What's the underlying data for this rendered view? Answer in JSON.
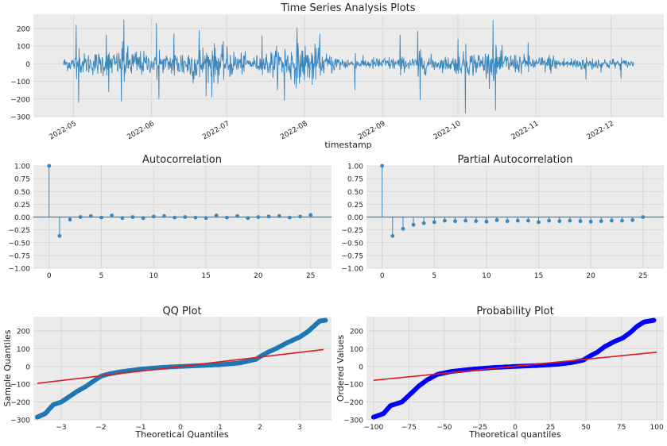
{
  "figure": {
    "charts": [
      {
        "title": "Time Series Analysis Plots",
        "xlabel": "timestamp",
        "ylabel": "",
        "y_ticks": [
          "200",
          "100",
          "0",
          "−100",
          "−200",
          "−300"
        ],
        "x_ticks": [
          "2022-05",
          "2022-06",
          "2022-07",
          "2022-08",
          "2022-09",
          "2022-10",
          "2022-11",
          "2022-12"
        ],
        "line_color": "#3a87bd"
      },
      {
        "title": "Autocorrelation",
        "xlabel": "",
        "ylabel": "",
        "y_ticks": [
          "1.00",
          "0.75",
          "0.50",
          "0.25",
          "0.00",
          "−0.25",
          "−0.50",
          "−0.75",
          "−1.00"
        ],
        "x_ticks": [
          "0",
          "5",
          "10",
          "15",
          "20",
          "25"
        ],
        "stem_color": "#3a87bd"
      },
      {
        "title": "Partial Autocorrelation",
        "xlabel": "",
        "ylabel": "",
        "y_ticks": [
          "1.00",
          "0.75",
          "0.50",
          "0.25",
          "0.00",
          "−0.25",
          "−0.50",
          "−0.75",
          "−1.00"
        ],
        "x_ticks": [
          "0",
          "5",
          "10",
          "15",
          "20",
          "25"
        ],
        "stem_color": "#3a87bd"
      },
      {
        "title": "QQ Plot",
        "xlabel": "Theoretical Quantiles",
        "ylabel": "Sample Quantiles",
        "y_ticks": [
          "200",
          "100",
          "0",
          "−100",
          "−200",
          "−300"
        ],
        "x_ticks": [
          "−3",
          "−2",
          "−1",
          "0",
          "1",
          "2",
          "3"
        ],
        "marker_color": "#1f77b4",
        "line_color": "#e31a1c"
      },
      {
        "title": "Probability Plot",
        "xlabel": "Theoretical quantiles",
        "ylabel": "Ordered Values",
        "y_ticks": [
          "200",
          "100",
          "0",
          "−100",
          "−200",
          "−300"
        ],
        "x_ticks": [
          "−100",
          "−75",
          "−50",
          "−25",
          "0",
          "25",
          "50",
          "75",
          "100"
        ],
        "marker_color": "#0000ff",
        "line_color": "#e31a1c"
      }
    ]
  },
  "chart_data": [
    {
      "type": "line",
      "title": "Time Series Analysis Plots",
      "xlabel": "timestamp",
      "ylabel": "",
      "x_range": [
        "2022-04-27",
        "2022-12-10"
      ],
      "ylim": [
        -300,
        280
      ],
      "grid": true,
      "bursts": [
        {
          "date": "2022-05-02",
          "value": 220
        },
        {
          "date": "2022-05-03",
          "value": -220
        },
        {
          "date": "2022-05-14",
          "value": 165
        },
        {
          "date": "2022-05-15",
          "value": -160
        },
        {
          "date": "2022-05-20",
          "value": -215
        },
        {
          "date": "2022-05-21",
          "value": 250
        },
        {
          "date": "2022-06-03",
          "value": 230
        },
        {
          "date": "2022-06-04",
          "value": -200
        },
        {
          "date": "2022-06-10",
          "value": 170
        },
        {
          "date": "2022-06-20",
          "value": 190
        },
        {
          "date": "2022-06-25",
          "value": -190
        },
        {
          "date": "2022-07-15",
          "value": 160
        },
        {
          "date": "2022-07-24",
          "value": -210
        },
        {
          "date": "2022-07-29",
          "value": 205
        },
        {
          "date": "2022-08-04",
          "value": -120
        },
        {
          "date": "2022-08-07",
          "value": 170
        },
        {
          "date": "2022-08-21",
          "value": -150
        },
        {
          "date": "2022-09-08",
          "value": 165
        },
        {
          "date": "2022-09-15",
          "value": 185
        },
        {
          "date": "2022-09-16",
          "value": -205
        },
        {
          "date": "2022-10-01",
          "value": 140
        },
        {
          "date": "2022-10-04",
          "value": -280
        },
        {
          "date": "2022-10-15",
          "value": 245
        },
        {
          "date": "2022-10-16",
          "value": -265
        },
        {
          "date": "2022-10-29",
          "value": 120
        },
        {
          "date": "2022-11-21",
          "value": 105
        },
        {
          "date": "2022-11-21",
          "value": -90
        },
        {
          "date": "2022-12-05",
          "value": -85
        }
      ]
    },
    {
      "type": "stem",
      "title": "Autocorrelation",
      "xlabel": "",
      "ylabel": "",
      "x": [
        0,
        1,
        2,
        3,
        4,
        5,
        6,
        7,
        8,
        9,
        10,
        11,
        12,
        13,
        14,
        15,
        16,
        17,
        18,
        19,
        20,
        21,
        22,
        23,
        24,
        25
      ],
      "values": [
        1.0,
        -0.37,
        -0.05,
        0.0,
        0.02,
        -0.01,
        0.03,
        -0.02,
        0.0,
        -0.02,
        0.01,
        0.02,
        -0.01,
        0.0,
        -0.01,
        -0.02,
        0.03,
        -0.01,
        0.02,
        -0.02,
        0.0,
        0.01,
        0.02,
        -0.01,
        0.01,
        0.04
      ],
      "xlim": [
        -1.5,
        27
      ],
      "ylim": [
        -1.0,
        1.0
      ],
      "grid": true
    },
    {
      "type": "stem",
      "title": "Partial Autocorrelation",
      "xlabel": "",
      "ylabel": "",
      "x": [
        0,
        1,
        2,
        3,
        4,
        5,
        6,
        7,
        8,
        9,
        10,
        11,
        12,
        13,
        14,
        15,
        16,
        17,
        18,
        19,
        20,
        21,
        22,
        23,
        24,
        25
      ],
      "values": [
        1.0,
        -0.37,
        -0.23,
        -0.15,
        -0.12,
        -0.1,
        -0.07,
        -0.08,
        -0.07,
        -0.08,
        -0.09,
        -0.06,
        -0.08,
        -0.07,
        -0.07,
        -0.1,
        -0.07,
        -0.08,
        -0.07,
        -0.08,
        -0.09,
        -0.08,
        -0.07,
        -0.07,
        -0.06,
        0.0
      ],
      "xlim": [
        -1.5,
        27
      ],
      "ylim": [
        -1.0,
        1.0
      ],
      "grid": true
    },
    {
      "type": "scatter",
      "title": "QQ Plot",
      "xlabel": "Theoretical Quantiles",
      "ylabel": "Sample Quantiles",
      "xlim": [
        -3.7,
        3.8
      ],
      "ylim": [
        -300,
        280
      ],
      "grid": true,
      "curve_knots": [
        [
          -3.6,
          -285
        ],
        [
          -3.4,
          -265
        ],
        [
          -3.2,
          -215
        ],
        [
          -3.0,
          -200
        ],
        [
          -2.8,
          -170
        ],
        [
          -2.6,
          -140
        ],
        [
          -2.4,
          -115
        ],
        [
          -2.2,
          -85
        ],
        [
          -2.0,
          -55
        ],
        [
          -1.8,
          -42
        ],
        [
          -1.5,
          -30
        ],
        [
          -1.0,
          -15
        ],
        [
          -0.5,
          -6
        ],
        [
          0.0,
          0
        ],
        [
          0.5,
          5
        ],
        [
          1.0,
          10
        ],
        [
          1.5,
          20
        ],
        [
          1.9,
          40
        ],
        [
          2.0,
          55
        ],
        [
          2.2,
          80
        ],
        [
          2.4,
          100
        ],
        [
          2.7,
          135
        ],
        [
          3.0,
          165
        ],
        [
          3.2,
          195
        ],
        [
          3.35,
          225
        ],
        [
          3.5,
          255
        ],
        [
          3.65,
          260
        ]
      ],
      "fit_line": {
        "x": [
          -3.6,
          3.6
        ],
        "y": [
          -95,
          95
        ]
      }
    },
    {
      "type": "scatter",
      "title": "Probability Plot",
      "xlabel": "Theoretical quantiles",
      "ylabel": "Ordered Values",
      "xlim": [
        -105,
        105
      ],
      "ylim": [
        -300,
        280
      ],
      "grid": true,
      "curve_knots": [
        [
          -100,
          -285
        ],
        [
          -93,
          -265
        ],
        [
          -88,
          -220
        ],
        [
          -84,
          -210
        ],
        [
          -80,
          -200
        ],
        [
          -76,
          -170
        ],
        [
          -72,
          -140
        ],
        [
          -68,
          -110
        ],
        [
          -62,
          -75
        ],
        [
          -55,
          -45
        ],
        [
          -45,
          -28
        ],
        [
          -30,
          -15
        ],
        [
          -15,
          -6
        ],
        [
          0,
          0
        ],
        [
          15,
          5
        ],
        [
          30,
          12
        ],
        [
          40,
          22
        ],
        [
          48,
          35
        ],
        [
          52,
          55
        ],
        [
          58,
          80
        ],
        [
          63,
          110
        ],
        [
          70,
          140
        ],
        [
          76,
          160
        ],
        [
          82,
          195
        ],
        [
          86,
          225
        ],
        [
          91,
          250
        ],
        [
          98,
          260
        ]
      ],
      "fit_line": {
        "x": [
          -100,
          100
        ],
        "y": [
          -78,
          80
        ]
      }
    }
  ]
}
